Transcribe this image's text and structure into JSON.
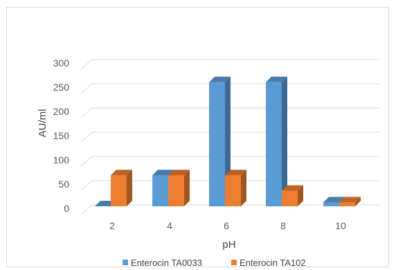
{
  "chart_data": {
    "type": "bar",
    "title": "",
    "xlabel": "pH",
    "ylabel": "AU/ml",
    "categories": [
      "2",
      "4",
      "6",
      "8",
      "10"
    ],
    "series": [
      {
        "name": "Enterocin TA0033",
        "values": [
          0,
          64,
          256,
          256,
          8
        ],
        "color": "#5b9bd5"
      },
      {
        "name": "Enterocin TA102",
        "values": [
          64,
          64,
          64,
          32,
          8
        ],
        "color": "#ed7d31"
      }
    ],
    "ylim": [
      0,
      300
    ],
    "yticks": [
      "0",
      "50",
      "100",
      "150",
      "200",
      "250",
      "300"
    ],
    "grid": true,
    "legend_position": "bottom",
    "style": "3d-clustered-column"
  }
}
